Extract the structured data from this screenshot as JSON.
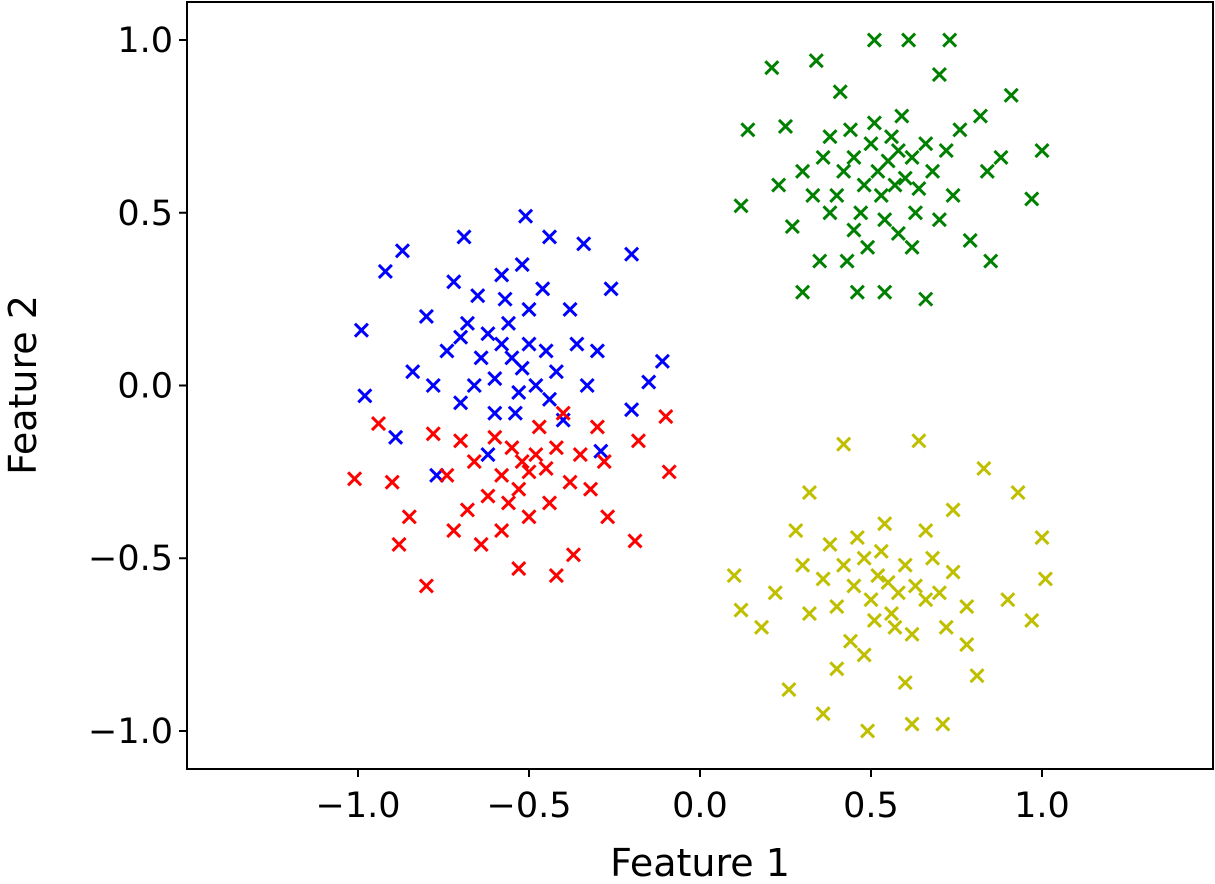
{
  "chart_data": {
    "type": "scatter",
    "title": "",
    "xlabel": "Feature 1",
    "ylabel": "Feature 2",
    "xlim": [
      -1.5,
      1.5
    ],
    "ylim": [
      -1.11,
      1.11
    ],
    "grid": false,
    "marker": "x",
    "xticks": [
      -1.0,
      -0.5,
      0.0,
      0.5,
      1.0
    ],
    "yticks": [
      1.0,
      0.5,
      0.0,
      -0.5,
      -1.0
    ],
    "xtick_labels": [
      "−1.0",
      "−0.5",
      "0.0",
      "0.5",
      "1.0"
    ],
    "ytick_labels": [
      "1.0",
      "0.5",
      "0.0",
      "−0.5",
      "−1.0"
    ],
    "series": [
      {
        "color": "#008000",
        "points": [
          [
            0.21,
            0.92
          ],
          [
            0.34,
            0.94
          ],
          [
            0.51,
            1.0
          ],
          [
            0.61,
            1.0
          ],
          [
            0.73,
            1.0
          ],
          [
            1.0,
            0.68
          ],
          [
            0.97,
            0.54
          ],
          [
            0.12,
            0.52
          ],
          [
            0.3,
            0.27
          ],
          [
            0.46,
            0.27
          ],
          [
            0.66,
            0.25
          ],
          [
            0.85,
            0.36
          ],
          [
            0.91,
            0.84
          ],
          [
            0.14,
            0.74
          ],
          [
            0.23,
            0.58
          ],
          [
            0.79,
            0.42
          ],
          [
            0.54,
            0.27
          ],
          [
            0.35,
            0.36
          ],
          [
            0.41,
            0.85
          ],
          [
            0.7,
            0.9
          ],
          [
            0.82,
            0.78
          ],
          [
            0.88,
            0.66
          ],
          [
            0.27,
            0.46
          ],
          [
            0.38,
            0.72
          ],
          [
            0.25,
            0.75
          ],
          [
            0.45,
            0.45
          ],
          [
            0.62,
            0.4
          ],
          [
            0.74,
            0.55
          ],
          [
            0.84,
            0.62
          ],
          [
            0.3,
            0.62
          ],
          [
            0.55,
            0.65
          ],
          [
            0.52,
            0.62
          ],
          [
            0.58,
            0.68
          ],
          [
            0.5,
            0.7
          ],
          [
            0.6,
            0.6
          ],
          [
            0.48,
            0.58
          ],
          [
            0.56,
            0.72
          ],
          [
            0.62,
            0.66
          ],
          [
            0.45,
            0.66
          ],
          [
            0.53,
            0.55
          ],
          [
            0.66,
            0.7
          ],
          [
            0.42,
            0.62
          ],
          [
            0.57,
            0.58
          ],
          [
            0.51,
            0.76
          ],
          [
            0.64,
            0.57
          ],
          [
            0.47,
            0.5
          ],
          [
            0.68,
            0.62
          ],
          [
            0.4,
            0.55
          ],
          [
            0.59,
            0.78
          ],
          [
            0.36,
            0.66
          ],
          [
            0.72,
            0.68
          ],
          [
            0.54,
            0.48
          ],
          [
            0.44,
            0.74
          ],
          [
            0.63,
            0.5
          ],
          [
            0.38,
            0.5
          ],
          [
            0.7,
            0.48
          ],
          [
            0.33,
            0.55
          ],
          [
            0.76,
            0.74
          ],
          [
            0.49,
            0.4
          ],
          [
            0.58,
            0.44
          ],
          [
            0.43,
            0.36
          ]
        ]
      },
      {
        "color": "#0000ff",
        "points": [
          [
            -0.51,
            0.49
          ],
          [
            -0.2,
            0.38
          ],
          [
            -0.11,
            0.07
          ],
          [
            -0.99,
            0.16
          ],
          [
            -0.98,
            -0.03
          ],
          [
            -0.92,
            0.33
          ],
          [
            -0.87,
            0.39
          ],
          [
            -0.69,
            0.43
          ],
          [
            -0.44,
            0.43
          ],
          [
            -0.34,
            0.41
          ],
          [
            -0.89,
            -0.15
          ],
          [
            -0.77,
            -0.26
          ],
          [
            -0.15,
            0.01
          ],
          [
            -0.29,
            -0.19
          ],
          [
            -0.84,
            0.04
          ],
          [
            -0.26,
            0.28
          ],
          [
            -0.2,
            -0.07
          ],
          [
            -0.8,
            0.2
          ],
          [
            -0.72,
            0.3
          ],
          [
            -0.38,
            0.22
          ],
          [
            -0.3,
            0.1
          ],
          [
            -0.7,
            -0.05
          ],
          [
            -0.4,
            -0.1
          ],
          [
            -0.62,
            -0.2
          ],
          [
            -0.55,
            0.08
          ],
          [
            -0.58,
            0.12
          ],
          [
            -0.52,
            0.05
          ],
          [
            -0.6,
            0.02
          ],
          [
            -0.5,
            0.12
          ],
          [
            -0.56,
            0.18
          ],
          [
            -0.64,
            0.08
          ],
          [
            -0.48,
            0.0
          ],
          [
            -0.53,
            -0.02
          ],
          [
            -0.62,
            0.15
          ],
          [
            -0.45,
            0.1
          ],
          [
            -0.57,
            0.25
          ],
          [
            -0.66,
            0.0
          ],
          [
            -0.42,
            0.04
          ],
          [
            -0.5,
            0.22
          ],
          [
            -0.68,
            0.18
          ],
          [
            -0.6,
            -0.08
          ],
          [
            -0.46,
            0.28
          ],
          [
            -0.54,
            -0.08
          ],
          [
            -0.74,
            0.1
          ],
          [
            -0.36,
            0.12
          ],
          [
            -0.65,
            0.26
          ],
          [
            -0.44,
            -0.04
          ],
          [
            -0.58,
            0.32
          ],
          [
            -0.78,
            0.0
          ],
          [
            -0.33,
            0.0
          ],
          [
            -0.52,
            0.35
          ],
          [
            -0.7,
            0.14
          ]
        ]
      },
      {
        "color": "#ff0000",
        "points": [
          [
            -1.01,
            -0.27
          ],
          [
            -0.09,
            -0.25
          ],
          [
            -0.1,
            -0.09
          ],
          [
            -0.88,
            -0.46
          ],
          [
            -0.8,
            -0.58
          ],
          [
            -0.42,
            -0.55
          ],
          [
            -0.19,
            -0.45
          ],
          [
            -0.94,
            -0.11
          ],
          [
            -0.53,
            -0.53
          ],
          [
            -0.37,
            -0.49
          ],
          [
            -0.27,
            -0.38
          ],
          [
            -0.64,
            -0.46
          ],
          [
            -0.85,
            -0.38
          ],
          [
            -0.72,
            -0.42
          ],
          [
            -0.3,
            -0.12
          ],
          [
            -0.18,
            -0.16
          ],
          [
            -0.9,
            -0.28
          ],
          [
            -0.52,
            -0.22
          ],
          [
            -0.5,
            -0.25
          ],
          [
            -0.55,
            -0.18
          ],
          [
            -0.48,
            -0.2
          ],
          [
            -0.58,
            -0.26
          ],
          [
            -0.45,
            -0.24
          ],
          [
            -0.53,
            -0.3
          ],
          [
            -0.6,
            -0.15
          ],
          [
            -0.42,
            -0.18
          ],
          [
            -0.56,
            -0.34
          ],
          [
            -0.66,
            -0.22
          ],
          [
            -0.38,
            -0.28
          ],
          [
            -0.47,
            -0.12
          ],
          [
            -0.62,
            -0.32
          ],
          [
            -0.35,
            -0.2
          ],
          [
            -0.7,
            -0.16
          ],
          [
            -0.5,
            -0.38
          ],
          [
            -0.44,
            -0.34
          ],
          [
            -0.74,
            -0.26
          ],
          [
            -0.32,
            -0.3
          ],
          [
            -0.58,
            -0.42
          ],
          [
            -0.4,
            -0.08
          ],
          [
            -0.68,
            -0.36
          ],
          [
            -0.28,
            -0.22
          ],
          [
            -0.78,
            -0.14
          ]
        ]
      },
      {
        "color": "#bfbf00",
        "points": [
          [
            0.49,
            -1.0
          ],
          [
            0.36,
            -0.95
          ],
          [
            0.71,
            -0.98
          ],
          [
            0.62,
            -0.98
          ],
          [
            0.1,
            -0.55
          ],
          [
            0.26,
            -0.88
          ],
          [
            0.97,
            -0.68
          ],
          [
            1.01,
            -0.56
          ],
          [
            1.0,
            -0.44
          ],
          [
            0.93,
            -0.31
          ],
          [
            0.83,
            -0.24
          ],
          [
            0.42,
            -0.17
          ],
          [
            0.64,
            -0.16
          ],
          [
            0.32,
            -0.31
          ],
          [
            0.81,
            -0.84
          ],
          [
            0.12,
            -0.65
          ],
          [
            0.78,
            -0.75
          ],
          [
            0.18,
            -0.7
          ],
          [
            0.28,
            -0.42
          ],
          [
            0.9,
            -0.62
          ],
          [
            0.74,
            -0.36
          ],
          [
            0.4,
            -0.82
          ],
          [
            0.6,
            -0.86
          ],
          [
            0.22,
            -0.6
          ],
          [
            0.55,
            -0.57
          ],
          [
            0.52,
            -0.55
          ],
          [
            0.58,
            -0.6
          ],
          [
            0.5,
            -0.62
          ],
          [
            0.6,
            -0.52
          ],
          [
            0.48,
            -0.5
          ],
          [
            0.56,
            -0.66
          ],
          [
            0.63,
            -0.58
          ],
          [
            0.45,
            -0.58
          ],
          [
            0.53,
            -0.48
          ],
          [
            0.66,
            -0.62
          ],
          [
            0.42,
            -0.52
          ],
          [
            0.57,
            -0.7
          ],
          [
            0.51,
            -0.68
          ],
          [
            0.68,
            -0.5
          ],
          [
            0.4,
            -0.64
          ],
          [
            0.62,
            -0.72
          ],
          [
            0.46,
            -0.44
          ],
          [
            0.7,
            -0.6
          ],
          [
            0.36,
            -0.56
          ],
          [
            0.54,
            -0.4
          ],
          [
            0.74,
            -0.54
          ],
          [
            0.44,
            -0.74
          ],
          [
            0.66,
            -0.42
          ],
          [
            0.32,
            -0.66
          ],
          [
            0.78,
            -0.64
          ],
          [
            0.48,
            -0.78
          ],
          [
            0.38,
            -0.46
          ],
          [
            0.72,
            -0.7
          ],
          [
            0.3,
            -0.52
          ]
        ]
      }
    ]
  }
}
